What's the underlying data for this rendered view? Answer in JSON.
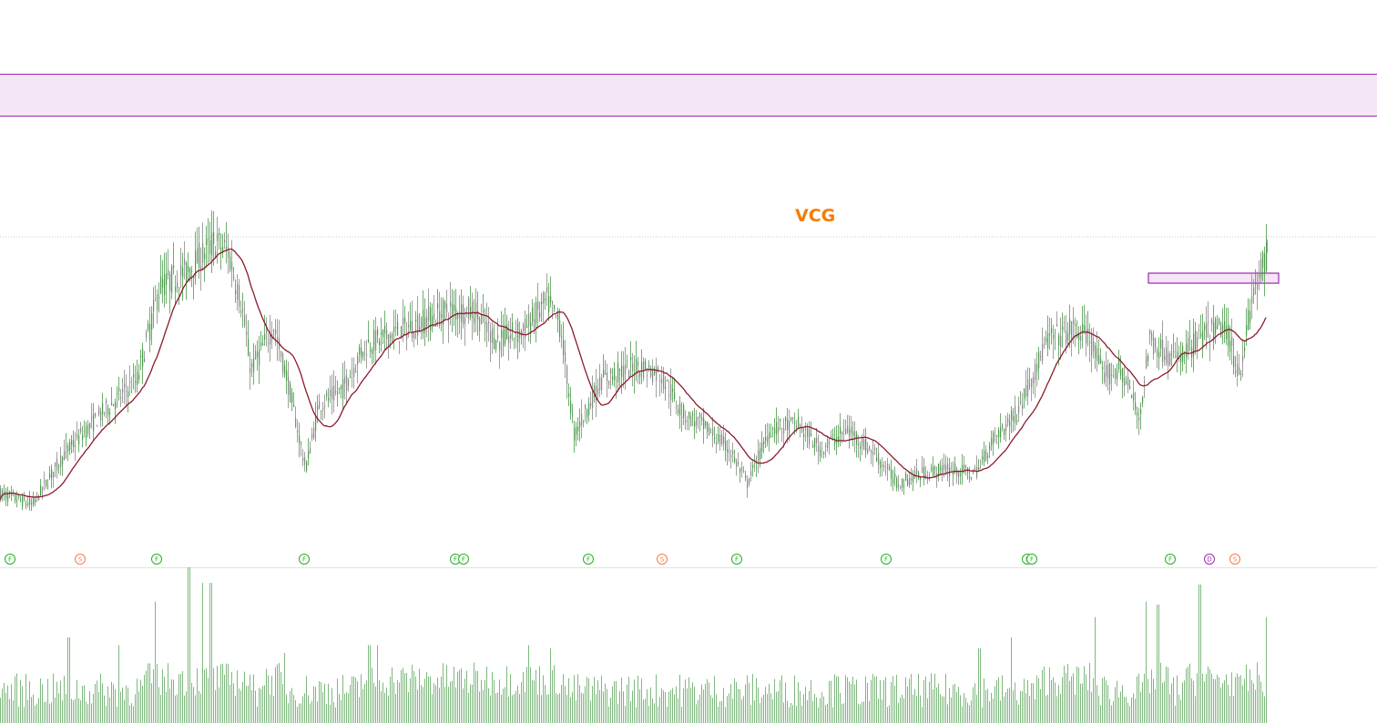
{
  "ticker": "VCG",
  "colors": {
    "up": "#4a9a4a",
    "down": "#888888",
    "ma": "#8b1a2b",
    "zone_fill": "#f4e6f5",
    "zone_border": "#9b27b0",
    "title": "#f57c00",
    "event_F": "#22b022",
    "event_S": "#f07d4b",
    "event_D": "#9b27b0",
    "volume": "#7fb87f"
  },
  "chart_data": {
    "type": "candlestick",
    "title": "VCG",
    "price_anchors": [
      [
        0,
        12.0
      ],
      [
        35,
        9.7
      ],
      [
        70,
        20.0
      ],
      [
        110,
        28.0
      ],
      [
        150,
        35.0
      ],
      [
        175,
        54.0
      ],
      [
        205,
        57.0
      ],
      [
        235,
        63.0
      ],
      [
        250,
        61.0
      ],
      [
        265,
        50.0
      ],
      [
        275,
        37.0
      ],
      [
        300,
        46.0
      ],
      [
        315,
        35.0
      ],
      [
        335,
        17.0
      ],
      [
        350,
        30.0
      ],
      [
        375,
        33.0
      ],
      [
        400,
        42.0
      ],
      [
        440,
        45.0
      ],
      [
        490,
        49.0
      ],
      [
        520,
        49.0
      ],
      [
        545,
        43.0
      ],
      [
        575,
        45.0
      ],
      [
        600,
        51.0
      ],
      [
        615,
        46.0
      ],
      [
        630,
        24.0
      ],
      [
        660,
        35.0
      ],
      [
        700,
        38.0
      ],
      [
        725,
        36.0
      ],
      [
        750,
        28.0
      ],
      [
        770,
        26.0
      ],
      [
        800,
        21.0
      ],
      [
        820,
        14.0
      ],
      [
        845,
        25.0
      ],
      [
        875,
        26.0
      ],
      [
        900,
        21.0
      ],
      [
        930,
        25.0
      ],
      [
        960,
        20.0
      ],
      [
        985,
        14.0
      ],
      [
        1010,
        16.0
      ],
      [
        1040,
        17.0
      ],
      [
        1070,
        16.0
      ],
      [
        1090,
        23.0
      ],
      [
        1115,
        28.0
      ],
      [
        1150,
        43.0
      ],
      [
        1175,
        45.0
      ],
      [
        1195,
        44.0
      ],
      [
        1210,
        36.0
      ],
      [
        1230,
        37.0
      ],
      [
        1240,
        33.0
      ],
      [
        1250,
        27.0
      ],
      [
        1262,
        43.0
      ],
      [
        1290,
        39.0
      ],
      [
        1320,
        44.0
      ],
      [
        1345,
        46.0
      ],
      [
        1360,
        36.0
      ],
      [
        1375,
        52.0
      ],
      [
        1390,
        60.0
      ]
    ],
    "last_price": 62.0,
    "ma_period": 20,
    "ylim": [
      5,
      70
    ],
    "reference_line": 64.0,
    "zones": [
      {
        "price_low": 100.0,
        "price_high": 108.0,
        "full_width": true
      },
      {
        "price_low": 52.5,
        "price_high": 54.6,
        "x_start": 1261,
        "x_end": 1404
      }
    ],
    "events": [
      {
        "x": 11,
        "label": "F"
      },
      {
        "x": 88,
        "label": "S"
      },
      {
        "x": 172,
        "label": "F"
      },
      {
        "x": 334,
        "label": "F"
      },
      {
        "x": 500,
        "label": "F"
      },
      {
        "x": 509,
        "label": "F"
      },
      {
        "x": 646,
        "label": "F"
      },
      {
        "x": 727,
        "label": "S"
      },
      {
        "x": 809,
        "label": "F"
      },
      {
        "x": 973,
        "label": "F"
      },
      {
        "x": 1128,
        "label": "F"
      },
      {
        "x": 1133,
        "label": "F"
      },
      {
        "x": 1285,
        "label": "F"
      },
      {
        "x": 1328,
        "label": "D"
      },
      {
        "x": 1356,
        "label": "S"
      }
    ],
    "volume_spikes": [
      [
        75,
        0.55
      ],
      [
        130,
        0.5
      ],
      [
        170,
        0.78
      ],
      [
        207,
        1.0
      ],
      [
        222,
        0.9
      ],
      [
        231,
        0.9
      ],
      [
        312,
        0.45
      ],
      [
        405,
        0.5
      ],
      [
        414,
        0.5
      ],
      [
        580,
        0.5
      ],
      [
        604,
        0.48
      ],
      [
        919,
        0.3
      ],
      [
        1075,
        0.48
      ],
      [
        1110,
        0.55
      ],
      [
        1202,
        0.68
      ],
      [
        1258,
        0.78
      ],
      [
        1271,
        0.76
      ],
      [
        1317,
        0.89
      ],
      [
        1391,
        0.68
      ]
    ]
  }
}
